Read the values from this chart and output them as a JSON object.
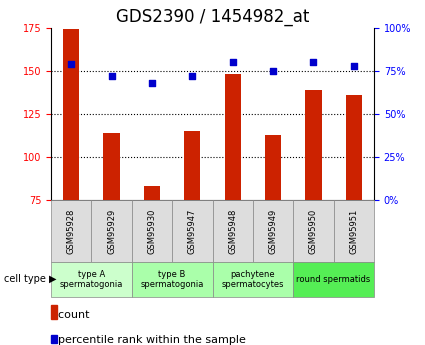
{
  "title": "GDS2390 / 1454982_at",
  "samples": [
    "GSM95928",
    "GSM95929",
    "GSM95930",
    "GSM95947",
    "GSM95948",
    "GSM95949",
    "GSM95950",
    "GSM95951"
  ],
  "counts": [
    174,
    114,
    83,
    115,
    148,
    113,
    139,
    136
  ],
  "percentiles": [
    79,
    72,
    68,
    72,
    80,
    75,
    80,
    78
  ],
  "ymin": 75,
  "ymax": 175,
  "yticks": [
    75,
    100,
    125,
    150,
    175
  ],
  "y2min": 0,
  "y2max": 100,
  "y2ticks": [
    0,
    25,
    50,
    75,
    100
  ],
  "y2ticklabels": [
    "0%",
    "25%",
    "50%",
    "75%",
    "100%"
  ],
  "bar_color": "#cc2200",
  "dot_color": "#0000cc",
  "cell_type_groups": [
    {
      "label": "type A\nspermatogonia",
      "start": 0,
      "end": 2,
      "color": "#ccffcc"
    },
    {
      "label": "type B\nspermatogonia",
      "start": 2,
      "end": 4,
      "color": "#aaffaa"
    },
    {
      "label": "pachytene\nspermatocytes",
      "start": 4,
      "end": 6,
      "color": "#aaffaa"
    },
    {
      "label": "round spermatids",
      "start": 6,
      "end": 8,
      "color": "#55ee55"
    }
  ],
  "cell_type_label": "cell type",
  "legend_count_label": "count",
  "legend_percentile_label": "percentile rank within the sample",
  "bar_width": 0.4,
  "title_fontsize": 12,
  "tick_label_fontsize": 7,
  "axis_label_fontsize": 8,
  "legend_fontsize": 8
}
